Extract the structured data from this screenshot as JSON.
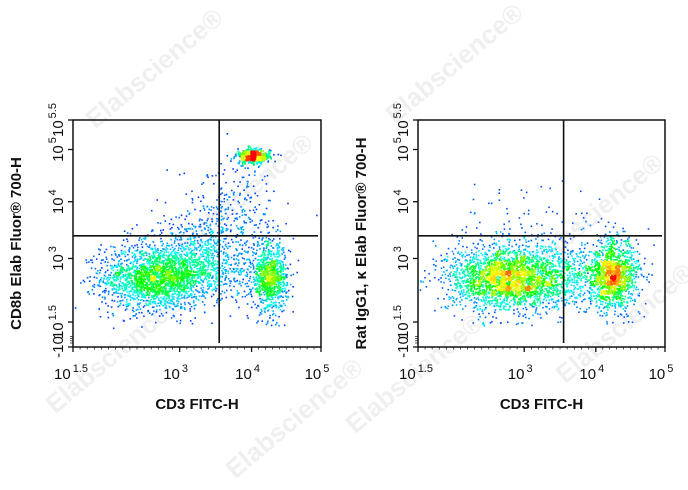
{
  "watermark": "Elabscience®",
  "colormap": [
    "#0000ff",
    "#00ffff",
    "#00ff00",
    "#ffff00",
    "#ff0000"
  ],
  "chart_data": [
    {
      "type": "scatter",
      "subtype": "flow-cytometry density dot plot",
      "xlabel": "CD3 FITC-H",
      "ylabel": "CD8b Elab Fluor® 700-H",
      "x_scale": "biexponential (log10 exponent)",
      "y_scale": "biexponential (log10 exponent)",
      "x_ticks": [
        {
          "base": "10",
          "exp": "1.5",
          "v": 1.5
        },
        {
          "base": "10",
          "exp": "3",
          "v": 3
        },
        {
          "base": "10",
          "exp": "4",
          "v": 4
        },
        {
          "base": "10",
          "exp": "5",
          "v": 5
        }
      ],
      "y_ticks": [
        {
          "base": "-10",
          "exp": "",
          "v": -1
        },
        {
          "base": "10",
          "exp": "1.5",
          "v": 1.5
        },
        {
          "base": "10",
          "exp": "3",
          "v": 3
        },
        {
          "base": "10",
          "exp": "4",
          "v": 4
        },
        {
          "base": "10",
          "exp": "5",
          "v": 5
        },
        {
          "base": "10",
          "exp": "5.5",
          "v": 5.5
        }
      ],
      "xlim": [
        1.5,
        5
      ],
      "ylim": [
        -1,
        5.5
      ],
      "quadrant_gate": {
        "x": 3.55,
        "y": 3.4
      },
      "populations": [
        {
          "x": 2.65,
          "y": 2.55,
          "sx": 0.38,
          "sy": 0.38,
          "n": 1900
        },
        {
          "x": 3.3,
          "y": 2.9,
          "sx": 0.45,
          "sy": 0.4,
          "n": 900
        },
        {
          "x": 4.25,
          "y": 2.55,
          "sx": 0.13,
          "sy": 0.38,
          "n": 900
        },
        {
          "x": 4.02,
          "y": 4.88,
          "sx": 0.12,
          "sy": 0.07,
          "n": 450
        },
        {
          "x": 3.7,
          "y": 3.9,
          "sx": 0.35,
          "sy": 0.45,
          "n": 250
        }
      ]
    },
    {
      "type": "scatter",
      "subtype": "flow-cytometry density dot plot",
      "xlabel": "CD3 FITC-H",
      "ylabel": "Rat IgG1, κ Elab Fluor® 700-H",
      "x_scale": "biexponential (log10 exponent)",
      "y_scale": "biexponential (log10 exponent)",
      "x_ticks": [
        {
          "base": "10",
          "exp": "1.5",
          "v": 1.5
        },
        {
          "base": "10",
          "exp": "3",
          "v": 3
        },
        {
          "base": "10",
          "exp": "4",
          "v": 4
        },
        {
          "base": "10",
          "exp": "5",
          "v": 5
        }
      ],
      "y_ticks": [
        {
          "base": "-10",
          "exp": "",
          "v": -1
        },
        {
          "base": "10",
          "exp": "1.5",
          "v": 1.5
        },
        {
          "base": "10",
          "exp": "3",
          "v": 3
        },
        {
          "base": "10",
          "exp": "4",
          "v": 4
        },
        {
          "base": "10",
          "exp": "5",
          "v": 5
        },
        {
          "base": "10",
          "exp": "5.5",
          "v": 5.5
        }
      ],
      "xlim": [
        1.5,
        5
      ],
      "ylim": [
        -1,
        5.5
      ],
      "quadrant_gate": {
        "x": 3.55,
        "y": 3.4
      },
      "populations": [
        {
          "x": 2.7,
          "y": 2.55,
          "sx": 0.4,
          "sy": 0.38,
          "n": 2000
        },
        {
          "x": 3.3,
          "y": 2.6,
          "sx": 0.45,
          "sy": 0.38,
          "n": 900
        },
        {
          "x": 4.25,
          "y": 2.6,
          "sx": 0.18,
          "sy": 0.38,
          "n": 1300
        },
        {
          "x": 3.0,
          "y": 3.9,
          "sx": 0.6,
          "sy": 0.35,
          "n": 35
        }
      ]
    }
  ]
}
